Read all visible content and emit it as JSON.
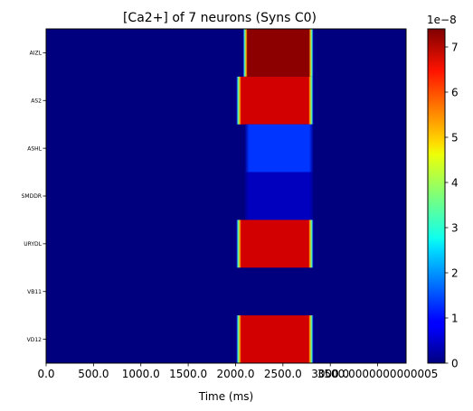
{
  "chart_data": {
    "type": "heatmap",
    "title": "[Ca2+] of 7 neurons (Syns C0)",
    "xlabel": "Time (ms)",
    "ylabel": "",
    "rows": [
      "AIZL",
      "AS2",
      "ASHL",
      "SMDDR",
      "URYDL",
      "VB11",
      "VD12"
    ],
    "x_tick_labels": [
      "0.0",
      "500.0",
      "1000.0",
      "1500.0",
      "2000.0",
      "2500.0",
      "3000.0",
      "3500.0000000000005"
    ],
    "x_tick_values": [
      0,
      500,
      1000,
      1500,
      2000,
      2500,
      3000,
      3500
    ],
    "xlim": [
      0,
      3800
    ],
    "colormap": "jet",
    "colorbar": {
      "range": [
        0,
        7.4
      ],
      "tick_values": [
        0,
        1,
        2,
        3,
        4,
        5,
        6,
        7
      ],
      "tick_labels": [
        "0",
        "1",
        "2",
        "3",
        "4",
        "5",
        "6",
        "7"
      ],
      "offset_label": "1e−8"
    },
    "segments": [
      {
        "neuron": "AIZL",
        "start": 2080,
        "end": 2820,
        "value": 7.3
      },
      {
        "neuron": "AS2",
        "start": 2010,
        "end": 2820,
        "value": 6.8
      },
      {
        "neuron": "ASHL",
        "start": 2100,
        "end": 2820,
        "value": 1.3
      },
      {
        "neuron": "SMDDR",
        "start": 2100,
        "end": 2820,
        "value": 0.45
      },
      {
        "neuron": "URYDL",
        "start": 2010,
        "end": 2820,
        "value": 6.8
      },
      {
        "neuron": "VB11",
        "start": 0,
        "end": 0,
        "value": 0
      },
      {
        "neuron": "VD12",
        "start": 2010,
        "end": 2820,
        "value": 6.8
      }
    ]
  }
}
